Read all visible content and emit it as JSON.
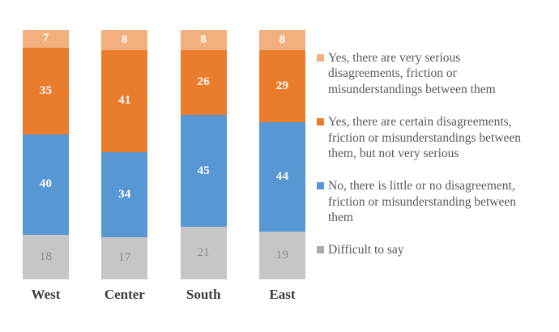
{
  "chart_data": {
    "type": "bar",
    "stacked": true,
    "percent_total": 100,
    "grid": false,
    "title": "",
    "xlabel": "",
    "ylabel": "",
    "ylim": [
      0,
      100
    ],
    "legend_position": "right",
    "categories": [
      "West",
      "Center",
      "South",
      "East"
    ],
    "series": [
      {
        "name": "Yes, there are very serious disagreements, friction or misunderstandings between them",
        "legend_lines": [
          "Yes, there are very serious",
          "disagreements, friction or",
          "misunderstandings between them"
        ],
        "color": "#F2B07E",
        "legend_color": "#F2B07E",
        "label_color": "#FFFFFF",
        "label_bold": true,
        "values": [
          7,
          8,
          8,
          8
        ]
      },
      {
        "name": "Yes, there are certain disagreements, friction or misunderstandings between them, but not very serious",
        "legend_lines": [
          "Yes, there are certain disagreements,",
          "friction or misunderstandings between",
          "them, but not very serious"
        ],
        "color": "#EA7C2E",
        "legend_color": "#EA7C2E",
        "label_color": "#FFFFFF",
        "label_bold": true,
        "values": [
          35,
          41,
          26,
          29
        ]
      },
      {
        "name": "No, there is little or no disagreement, friction or misunderstanding between them",
        "legend_lines": [
          "No, there is little or no disagreement,",
          "friction or misunderstanding between",
          "them"
        ],
        "color": "#5797D3",
        "legend_color": "#5797D3",
        "label_color": "#FFFFFF",
        "label_bold": true,
        "values": [
          40,
          34,
          45,
          44
        ]
      },
      {
        "name": "Difficult to say",
        "legend_lines": [
          "Difficult to say"
        ],
        "color": "#C6C6C6",
        "legend_color": "#ABABAB",
        "label_color": "#8C8C8C",
        "label_bold": false,
        "values": [
          18,
          17,
          21,
          19
        ]
      }
    ]
  },
  "colors": {
    "background": "#FFFFFF",
    "category_label": "#3D3D3D",
    "legend_text": "#595959"
  }
}
